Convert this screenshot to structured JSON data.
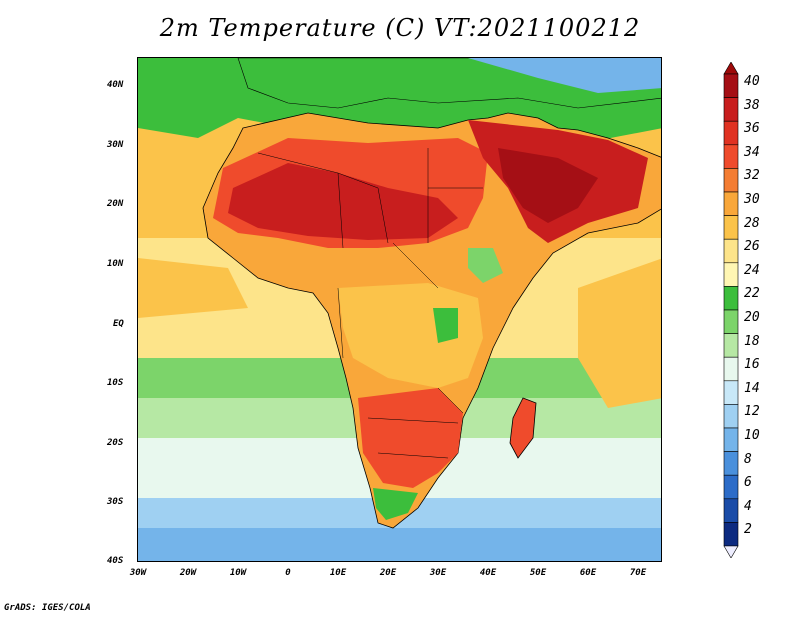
{
  "title": "2m Temperature (C) VT:2021100212",
  "credit": "GrADS: IGES/COLA",
  "lat_labels": [
    "40N",
    "30N",
    "20N",
    "10N",
    "EQ",
    "10S",
    "20S",
    "30S",
    "40S"
  ],
  "lon_labels": [
    "30W",
    "20W",
    "10W",
    "0",
    "10E",
    "20E",
    "30E",
    "40E",
    "50E",
    "60E",
    "70E"
  ],
  "colorbar": {
    "labels": [
      "40",
      "38",
      "36",
      "34",
      "32",
      "30",
      "28",
      "26",
      "24",
      "22",
      "20",
      "18",
      "16",
      "14",
      "12",
      "10",
      "8",
      "6",
      "4",
      "2"
    ],
    "colors": [
      "#a50f15",
      "#c81e1e",
      "#e03222",
      "#ef4b2c",
      "#f47d33",
      "#f9a73a",
      "#fbc34a",
      "#fde48a",
      "#fff6b3",
      "#3cbe3c",
      "#7cd46a",
      "#b6e8a4",
      "#e8f8ee",
      "#c8e8f8",
      "#9fd0f2",
      "#74b4ea",
      "#4a90dc",
      "#2c6cc8",
      "#1a4ca8",
      "#0c2a80"
    ],
    "top_arrow_color": "#9e0a0a",
    "bottom_arrow_color": "#eeeeff"
  },
  "map_colors": {
    "ocean_warm": "#fbc34a",
    "ocean_mild": "#fde48a",
    "ocean_green": "#3cbe3c",
    "ocean_cool": "#b6e8a4",
    "ocean_pale": "#e8f8ee",
    "ocean_cold": "#9fd0f2",
    "ocean_colder": "#74b4ea",
    "land_hot": "#c81e1e",
    "land_very_hot": "#a50f15",
    "land_warm": "#ef4b2c",
    "land_orange": "#f9a73a",
    "border": "#000000"
  }
}
